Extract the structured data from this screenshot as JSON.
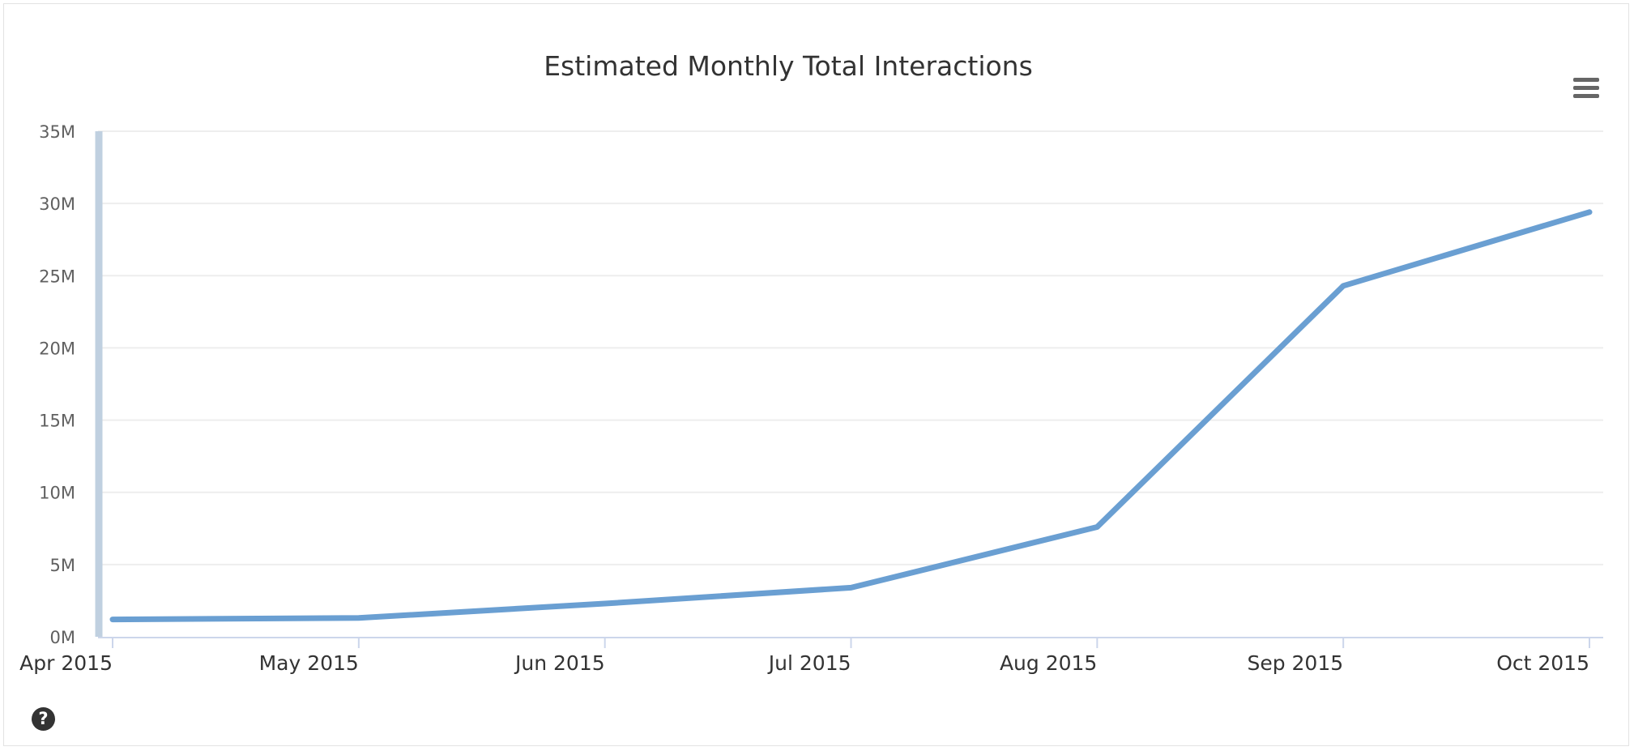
{
  "chart_data": {
    "type": "line",
    "title": "Estimated Monthly Total Interactions",
    "xlabel": "",
    "ylabel": "",
    "categories": [
      "Apr 2015",
      "May 2015",
      "Jun 2015",
      "Jul 2015",
      "Aug 2015",
      "Sep 2015",
      "Oct 2015"
    ],
    "series": [
      {
        "values": [
          1200000,
          1300000,
          2300000,
          3400000,
          7600000,
          24300000,
          29400000
        ],
        "color": "#6a9fd2"
      }
    ],
    "yticks": [
      "0M",
      "5M",
      "10M",
      "15M",
      "20M",
      "25M",
      "30M",
      "35M"
    ],
    "ylim": [
      0,
      35000000
    ],
    "grid": true,
    "legend": "none"
  },
  "icons": {
    "menu": "hamburger-menu-icon",
    "help": "question-circle-icon",
    "help_glyph": "?"
  }
}
